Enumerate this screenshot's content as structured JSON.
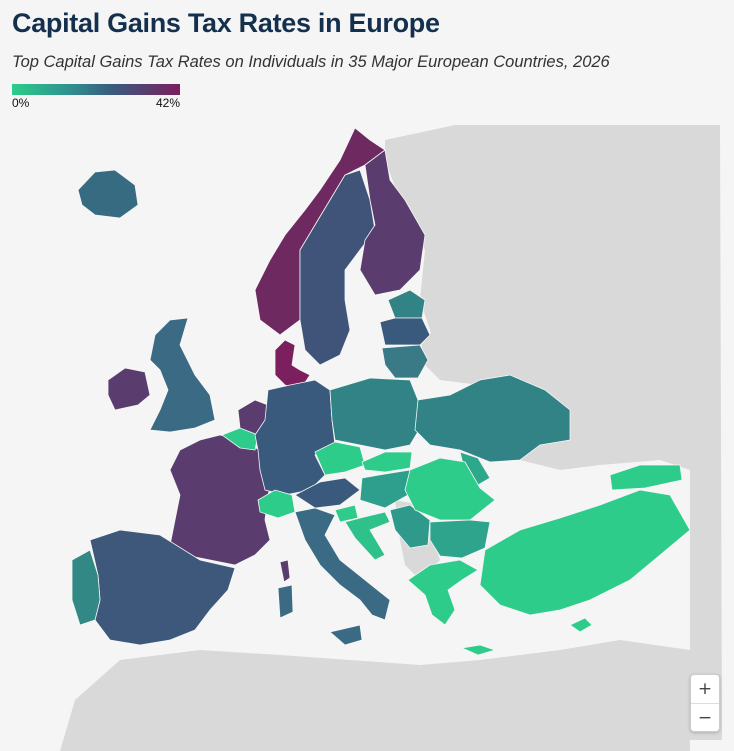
{
  "title": "Capital Gains Tax Rates in Europe",
  "subtitle": "Top Capital Gains Tax Rates on Individuals in 35 Major European Countries, 2026",
  "legend": {
    "min_label": "0%",
    "max_label": "42%",
    "colors": [
      "#2ecc8a",
      "#2f8f8f",
      "#3a5a7d",
      "#5a3d6e",
      "#7b1f5e"
    ]
  },
  "zoom": {
    "in_label": "+",
    "out_label": "−"
  },
  "map_colors": {
    "background": "#f5f5f5",
    "no_data": "#d9d9d9",
    "sea": "#f5f5f5"
  },
  "countries": [
    {
      "name": "denmark",
      "color": "#7b1f5e"
    },
    {
      "name": "norway",
      "color": "#6e2960"
    },
    {
      "name": "finland",
      "color": "#5a3d6e"
    },
    {
      "name": "sweden",
      "color": "#3f5478"
    },
    {
      "name": "iceland",
      "color": "#376b82"
    },
    {
      "name": "ireland",
      "color": "#5a3d6e"
    },
    {
      "name": "united-kingdom",
      "color": "#3a6a84"
    },
    {
      "name": "france",
      "color": "#5a3d6e"
    },
    {
      "name": "netherlands",
      "color": "#5a3d6e"
    },
    {
      "name": "belgium",
      "color": "#2ecc8a"
    },
    {
      "name": "luxembourg",
      "color": "#2ecc8a"
    },
    {
      "name": "germany",
      "color": "#3a5a7d"
    },
    {
      "name": "switzerland",
      "color": "#2ecc8a"
    },
    {
      "name": "austria",
      "color": "#3a5a7d"
    },
    {
      "name": "italy",
      "color": "#3a6a84"
    },
    {
      "name": "spain",
      "color": "#3d587a"
    },
    {
      "name": "portugal",
      "color": "#318884"
    },
    {
      "name": "poland",
      "color": "#318386"
    },
    {
      "name": "czech-republic",
      "color": "#2ecc8a"
    },
    {
      "name": "slovakia",
      "color": "#2ecc8a"
    },
    {
      "name": "hungary",
      "color": "#2e9f8c"
    },
    {
      "name": "slovenia",
      "color": "#2ecc8a"
    },
    {
      "name": "croatia",
      "color": "#2ec28a"
    },
    {
      "name": "romania",
      "color": "#2ecc8a"
    },
    {
      "name": "bulgaria",
      "color": "#2ea48c"
    },
    {
      "name": "greece",
      "color": "#2ecc8a"
    },
    {
      "name": "turkey",
      "color": "#2ecc8a"
    },
    {
      "name": "estonia",
      "color": "#318386"
    },
    {
      "name": "latvia",
      "color": "#3a5a7d"
    },
    {
      "name": "lithuania",
      "color": "#3a7a86"
    },
    {
      "name": "ukraine-region",
      "color": "#318386"
    },
    {
      "name": "serbia-region",
      "color": "#2f9a8c"
    },
    {
      "name": "moldova-region",
      "color": "#2ea88a"
    },
    {
      "name": "sardinia",
      "color": "#3a6a84"
    },
    {
      "name": "corsica",
      "color": "#5a3d6e"
    },
    {
      "name": "sicily",
      "color": "#3a6a84"
    },
    {
      "name": "cyprus",
      "color": "#2ecc8a"
    }
  ]
}
